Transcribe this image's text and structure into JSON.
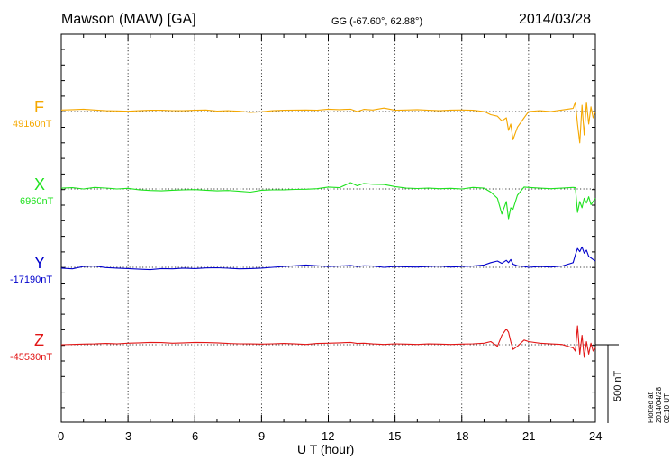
{
  "header": {
    "station": "Mawson (MAW)  [GA]",
    "coords": "GG (-67.60°,  62.88°)",
    "date": "2014/03/28"
  },
  "footnote": "Plotted at 2014/04/28 02:10 UT",
  "chart_data": {
    "type": "line",
    "xlabel": "U T (hour)",
    "xlim": [
      0,
      24
    ],
    "xticks": [
      "0",
      "3",
      "6",
      "9",
      "12",
      "15",
      "18",
      "21",
      "24"
    ],
    "scale_bar": "500 nT",
    "series": [
      {
        "name": "F",
        "baseline_label": "49160nT",
        "color": "#f5a800",
        "x": [
          0,
          0.5,
          1,
          1.5,
          2,
          2.5,
          3,
          3.5,
          4,
          4.5,
          5,
          5.5,
          6,
          6.5,
          7,
          7.5,
          8,
          8.5,
          9,
          9.5,
          10,
          10.5,
          11,
          11.5,
          12,
          12.5,
          13,
          13.3,
          13.6,
          14,
          14.5,
          15,
          15.5,
          16,
          16.5,
          17,
          17.5,
          18,
          18.5,
          19,
          19.3,
          19.6,
          19.8,
          20.0,
          20.1,
          20.2,
          20.3,
          20.5,
          20.8,
          21,
          21.5,
          22,
          22.5,
          23,
          23.1,
          23.2,
          23.3,
          23.4,
          23.5,
          23.6,
          23.7,
          23.8,
          23.9,
          24
        ],
        "y": [
          10,
          12,
          15,
          10,
          5,
          4,
          2,
          5,
          8,
          8,
          6,
          5,
          8,
          10,
          3,
          5,
          2,
          -5,
          -2,
          5,
          8,
          9,
          10,
          8,
          15,
          12,
          15,
          0,
          14,
          10,
          22,
          8,
          10,
          12,
          8,
          5,
          9,
          10,
          8,
          0,
          -20,
          -30,
          -60,
          -40,
          -120,
          -80,
          -180,
          -100,
          -40,
          0,
          5,
          0,
          10,
          20,
          60,
          -80,
          -200,
          40,
          -150,
          60,
          -80,
          30,
          -40,
          0
        ]
      },
      {
        "name": "X",
        "baseline_label": "6960nT",
        "color": "#1fe21f",
        "x": [
          0,
          0.5,
          1,
          1.5,
          2,
          2.5,
          3,
          3.5,
          4,
          4.5,
          5,
          5.5,
          6,
          6.5,
          7,
          7.5,
          8,
          8.5,
          9,
          9.5,
          10,
          10.5,
          11,
          11.5,
          12,
          12.5,
          13,
          13.3,
          13.6,
          14,
          14.5,
          15,
          15.5,
          16,
          16.5,
          17,
          17.5,
          18,
          18.5,
          19,
          19.3,
          19.6,
          19.8,
          20.0,
          20.1,
          20.2,
          20.3,
          20.5,
          20.8,
          21,
          21.5,
          22,
          22.5,
          23,
          23.1,
          23.2,
          23.3,
          23.4,
          23.5,
          23.6,
          23.7,
          23.8,
          23.9,
          24
        ],
        "y": [
          5,
          8,
          0,
          10,
          6,
          0,
          4,
          -5,
          -10,
          -12,
          -8,
          -6,
          -4,
          -8,
          -12,
          -10,
          -15,
          -20,
          -8,
          -6,
          -5,
          -3,
          -2,
          2,
          12,
          8,
          40,
          20,
          35,
          30,
          28,
          15,
          5,
          3,
          5,
          2,
          4,
          0,
          10,
          5,
          -20,
          -60,
          -160,
          -80,
          -190,
          -120,
          -130,
          -40,
          12,
          10,
          5,
          2,
          5,
          10,
          8,
          -150,
          -80,
          -120,
          -60,
          -90,
          -50,
          -100,
          -80,
          -60
        ]
      },
      {
        "name": "Y",
        "baseline_label": "-17190nT",
        "color": "#0000cc",
        "x": [
          0,
          0.5,
          1,
          1.5,
          2,
          2.5,
          3,
          3.5,
          4,
          4.5,
          5,
          5.5,
          6,
          6.5,
          7,
          7.5,
          8,
          8.5,
          9,
          9.5,
          10,
          10.5,
          11,
          11.5,
          12,
          12.5,
          13,
          13.3,
          13.6,
          14,
          14.5,
          15,
          15.5,
          16,
          16.5,
          17,
          17.5,
          18,
          18.5,
          19,
          19.3,
          19.6,
          19.8,
          20.0,
          20.1,
          20.2,
          20.3,
          20.5,
          20.8,
          21,
          21.5,
          22,
          22.5,
          23,
          23.1,
          23.2,
          23.3,
          23.4,
          23.5,
          23.6,
          23.7,
          23.8,
          23.9,
          24
        ],
        "y": [
          -5,
          -10,
          5,
          8,
          -2,
          -5,
          -8,
          -12,
          -15,
          -8,
          -10,
          -5,
          -8,
          -4,
          -3,
          -6,
          -10,
          -8,
          -5,
          0,
          5,
          10,
          15,
          10,
          5,
          8,
          12,
          5,
          10,
          8,
          0,
          5,
          3,
          2,
          5,
          8,
          2,
          5,
          8,
          15,
          30,
          40,
          25,
          45,
          30,
          50,
          20,
          10,
          5,
          0,
          5,
          2,
          8,
          30,
          80,
          120,
          100,
          130,
          90,
          110,
          70,
          60,
          50,
          40
        ]
      },
      {
        "name": "Z",
        "baseline_label": "-45530nT",
        "color": "#e21616",
        "x": [
          0,
          0.5,
          1,
          1.5,
          2,
          2.5,
          3,
          3.5,
          4,
          4.5,
          5,
          5.5,
          6,
          6.5,
          7,
          7.5,
          8,
          8.5,
          9,
          9.5,
          10,
          10.5,
          11,
          11.5,
          12,
          12.5,
          13,
          13.3,
          13.6,
          14,
          14.5,
          15,
          15.5,
          16,
          16.5,
          17,
          17.5,
          18,
          18.5,
          19,
          19.3,
          19.6,
          19.8,
          20.0,
          20.1,
          20.2,
          20.3,
          20.5,
          20.8,
          21,
          21.5,
          22,
          22.5,
          23,
          23.1,
          23.2,
          23.3,
          23.4,
          23.5,
          23.6,
          23.7,
          23.8,
          23.9,
          24
        ],
        "y": [
          0,
          2,
          4,
          5,
          8,
          6,
          10,
          12,
          15,
          14,
          10,
          12,
          15,
          14,
          12,
          8,
          6,
          5,
          4,
          6,
          8,
          5,
          2,
          8,
          10,
          12,
          15,
          8,
          10,
          5,
          2,
          6,
          4,
          2,
          5,
          4,
          2,
          4,
          6,
          10,
          20,
          -10,
          60,
          100,
          80,
          20,
          -30,
          -10,
          30,
          20,
          10,
          5,
          2,
          -20,
          -40,
          120,
          -60,
          60,
          -80,
          20,
          -60,
          10,
          -40,
          -20
        ]
      }
    ]
  }
}
